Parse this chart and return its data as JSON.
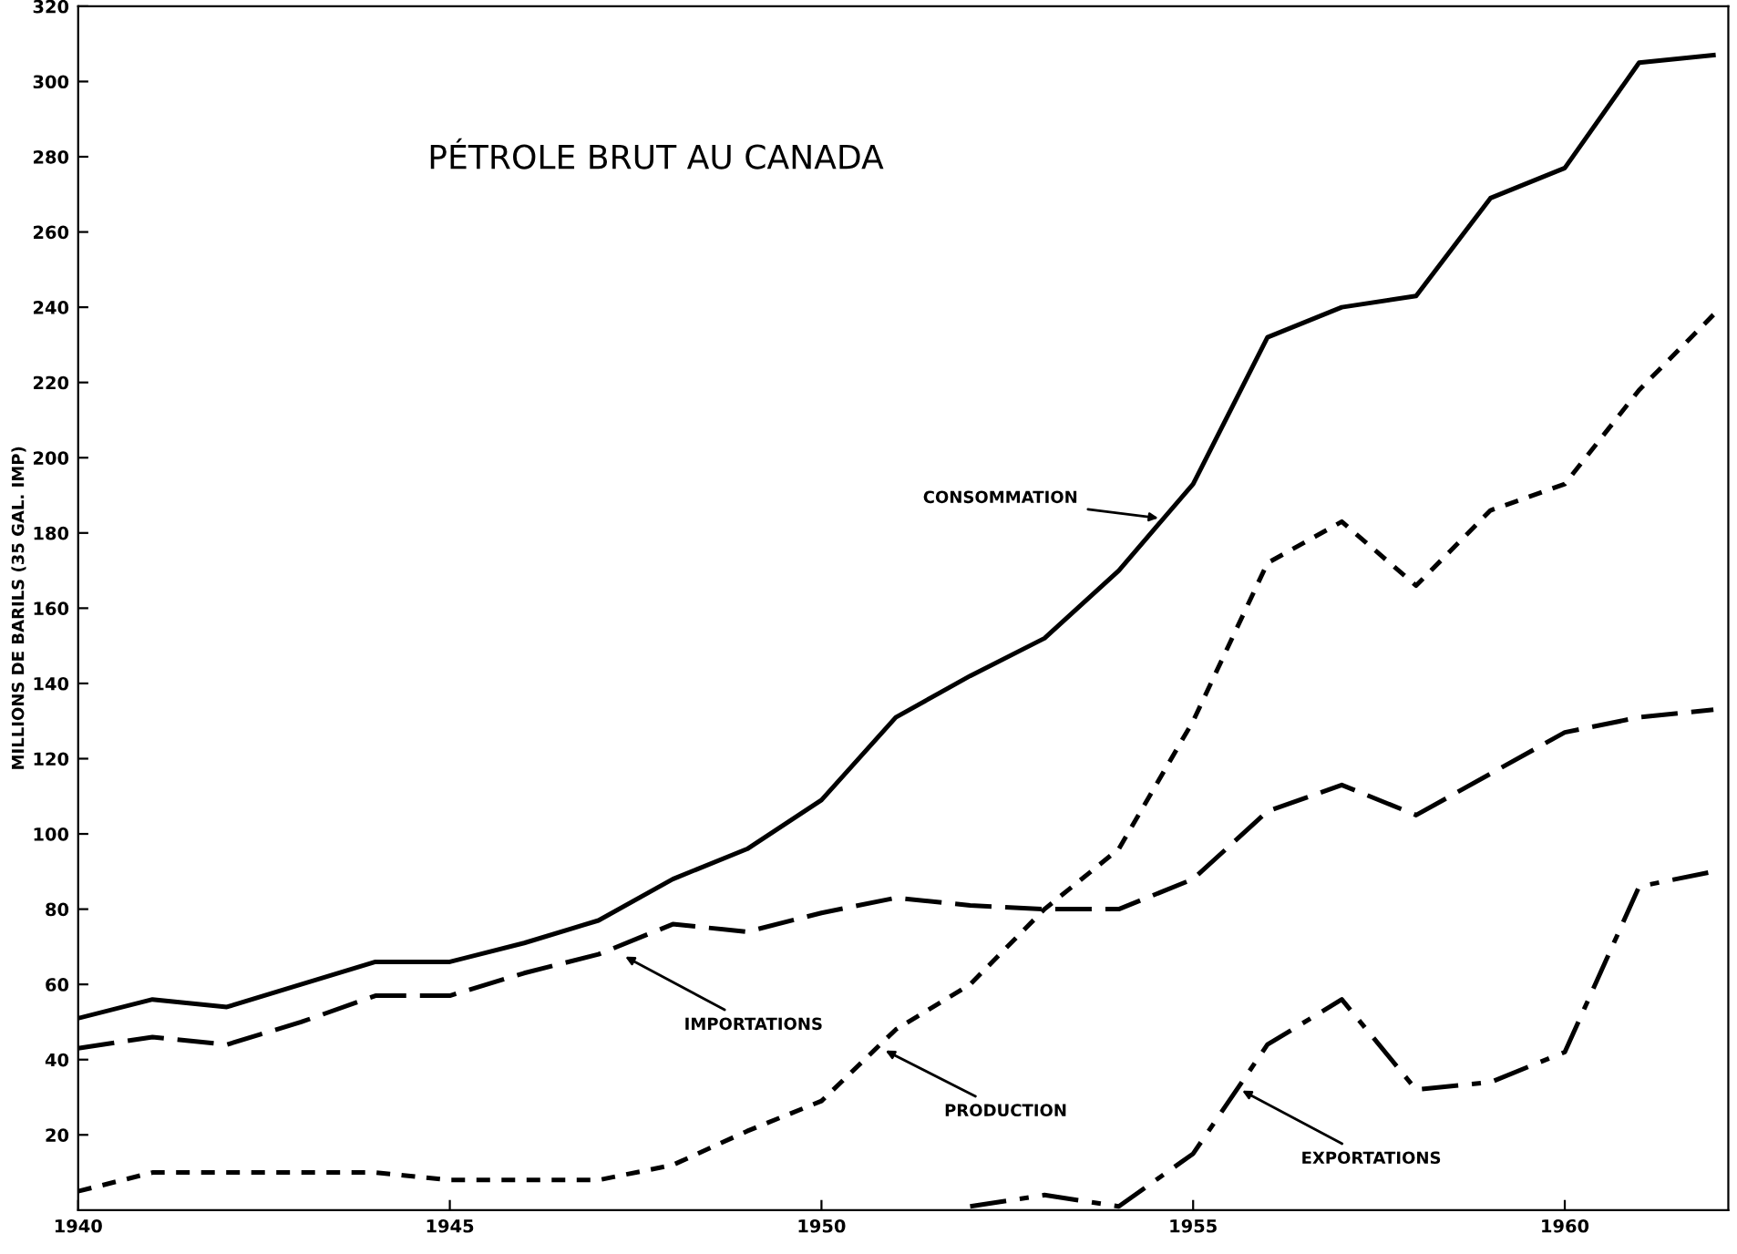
{
  "chart_data": {
    "type": "line",
    "title": "PÉTROLE BRUT AU CANADA",
    "ylabel": "MILLIONS DE BARILS (35 GAL. IMP)",
    "x": [
      1940,
      1941,
      1942,
      1943,
      1944,
      1945,
      1946,
      1947,
      1948,
      1949,
      1950,
      1951,
      1952,
      1953,
      1954,
      1955,
      1956,
      1957,
      1958,
      1959,
      1960,
      1961,
      1962
    ],
    "series": [
      {
        "color": "#000000",
        "line_style": "solid",
        "values": [
          51,
          56,
          54,
          60,
          66,
          66,
          71,
          77,
          88,
          96,
          109,
          131,
          142,
          152,
          170,
          193,
          232,
          240,
          243,
          269,
          277,
          305,
          307
        ]
      },
      {
        "color": "#000000",
        "line_style": "dashed",
        "values": [
          43,
          46,
          44,
          50,
          57,
          57,
          63,
          68,
          76,
          74,
          79,
          83,
          81,
          80,
          80,
          88,
          106,
          113,
          105,
          116,
          127,
          131,
          133
        ]
      },
      {
        "color": "#000000",
        "line_style": "dotted",
        "values": [
          5,
          10,
          10,
          10,
          10,
          8,
          8,
          8,
          12,
          21,
          29,
          48,
          60,
          80,
          96,
          130,
          172,
          183,
          166,
          186,
          193,
          218,
          238
        ]
      },
      {
        "color": "#000000",
        "line_style": "dashdot",
        "x": [
          1952,
          1953,
          1954,
          1955,
          1956,
          1957,
          1958,
          1959,
          1960,
          1961,
          1962
        ],
        "values": [
          1,
          4,
          1,
          15,
          44,
          56,
          32,
          34,
          42,
          86,
          90
        ]
      }
    ],
    "annotations": [
      {
        "text": "CONSOMMATION",
        "x": 1954.6,
        "y": 183.8
      },
      {
        "text": "IMPORTATIONS",
        "x": 1947.3,
        "y": 68
      },
      {
        "text": "PRODUCTION",
        "x": 1950.8,
        "y": 43
      },
      {
        "text": "EXPORTATIONS",
        "x": 1955.6,
        "y": 32.4
      }
    ],
    "xlim": [
      1940,
      1962.2
    ],
    "xticks": [
      1940,
      1945,
      1950,
      1955,
      1960
    ],
    "ylim": [
      0,
      320
    ],
    "yticks": [
      20,
      40,
      60,
      80,
      100,
      120,
      140,
      160,
      180,
      200,
      220,
      240,
      260,
      280,
      300,
      320
    ],
    "grid": false,
    "legend": false,
    "marker": "none"
  }
}
